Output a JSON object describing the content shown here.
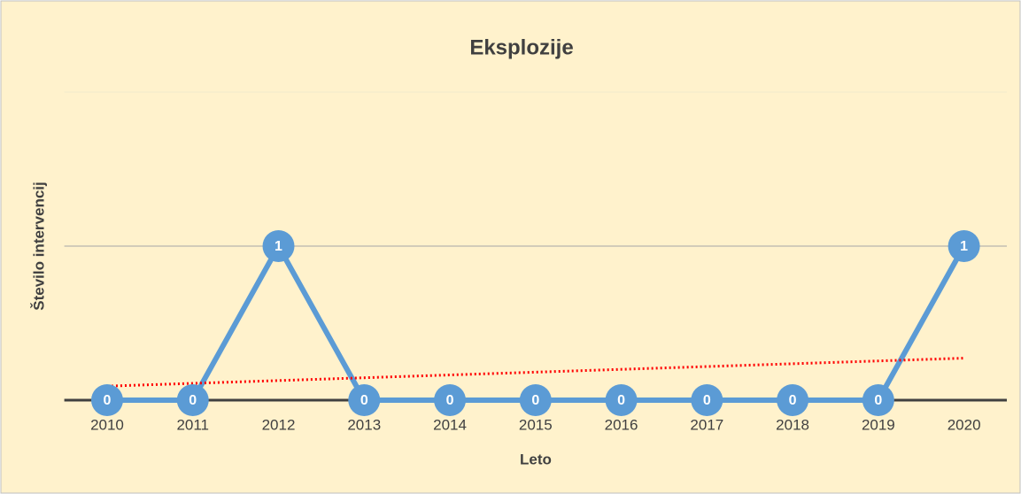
{
  "chart_data": {
    "type": "line",
    "title": "Eksplozije",
    "x_label": "Leto",
    "y_label": "Število intervencij",
    "categories": [
      "2010",
      "2011",
      "2012",
      "2013",
      "2014",
      "2015",
      "2016",
      "2017",
      "2018",
      "2019",
      "2020"
    ],
    "series": [
      {
        "name": "Eksplozije",
        "color": "#5b9bd5",
        "values": [
          0,
          0,
          1,
          0,
          0,
          0,
          0,
          0,
          0,
          0,
          1
        ]
      }
    ],
    "ylim": [
      0,
      2
    ],
    "yticks": [
      0,
      1,
      2
    ],
    "ytick_labels": false,
    "grid": true,
    "legend": false,
    "data_labels": true,
    "trendline": {
      "type": "linear",
      "color": "#ff0000"
    }
  }
}
